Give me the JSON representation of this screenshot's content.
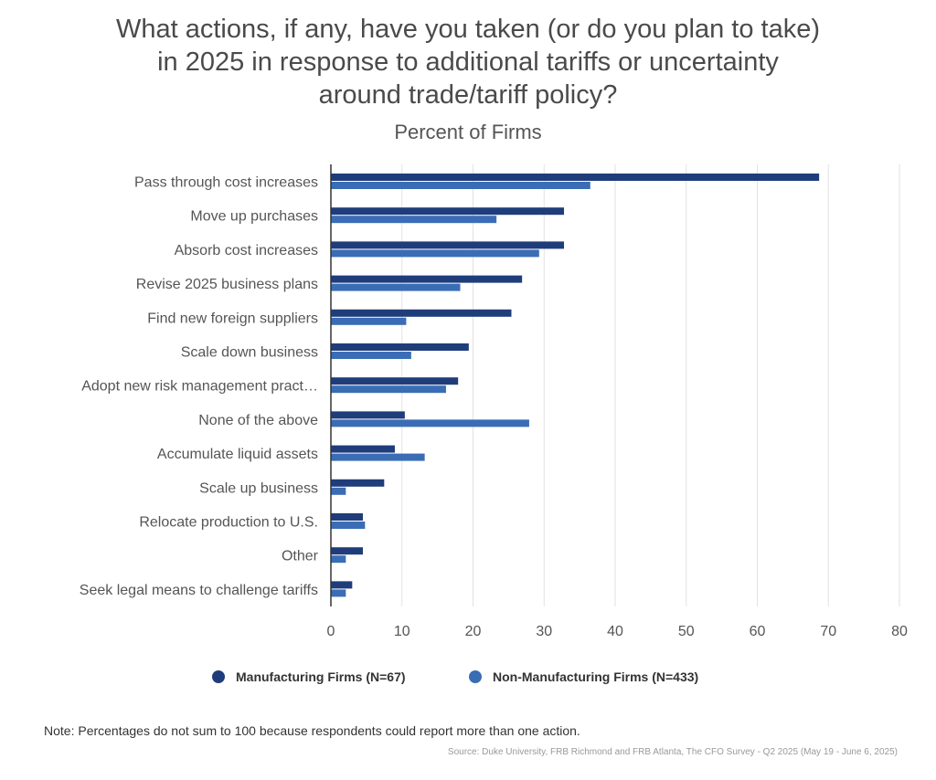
{
  "title_lines": [
    "What actions, if any, have you taken (or do you plan to take)",
    "in 2025 in response to additional tariffs or uncertainty",
    "around trade/tariff policy?"
  ],
  "subtitle": "Percent of Firms",
  "legend": [
    {
      "label": "Manufacturing Firms (N=67)",
      "color": "#1f3d7a"
    },
    {
      "label": "Non-Manufacturing Firms (N=433)",
      "color": "#3a6db5"
    }
  ],
  "note": "Note: Percentages do not sum to 100 because respondents could report more than one action.",
  "source": "Source: Duke University, FRB Richmond and FRB Atlanta, The CFO Survey - Q2 2025 (May 19 - June 6, 2025)",
  "chart_data": {
    "type": "bar",
    "orientation": "horizontal",
    "title": "What actions, if any, have you taken (or do you plan to take) in 2025 in response to additional tariffs or uncertainty around trade/tariff policy?",
    "subtitle": "Percent of Firms",
    "xlim": [
      0,
      80
    ],
    "xticks": [
      0,
      10,
      20,
      30,
      40,
      50,
      60,
      70,
      80
    ],
    "grid": true,
    "legend_position": "bottom",
    "categories": [
      "Pass through cost increases",
      "Move up purchases",
      "Absorb cost increases",
      "Revise 2025 business plans",
      "Find new foreign suppliers",
      "Scale down business",
      "Adopt new risk management pract…",
      "None of the above",
      "Accumulate liquid assets",
      "Scale up business",
      "Relocate production to U.S.",
      "Other",
      "Seek legal means to challenge tariffs"
    ],
    "series": [
      {
        "name": "Manufacturing Firms (N=67)",
        "color": "#1f3d7a",
        "values": [
          68.7,
          32.8,
          32.8,
          26.9,
          25.4,
          19.4,
          17.9,
          10.4,
          9.0,
          7.5,
          4.5,
          4.5,
          3.0
        ]
      },
      {
        "name": "Non-Manufacturing Firms (N=433)",
        "color": "#3a6db5",
        "values": [
          36.5,
          23.3,
          29.3,
          18.2,
          10.6,
          11.3,
          16.2,
          27.9,
          13.2,
          2.1,
          4.8,
          2.1,
          2.1
        ]
      }
    ]
  }
}
